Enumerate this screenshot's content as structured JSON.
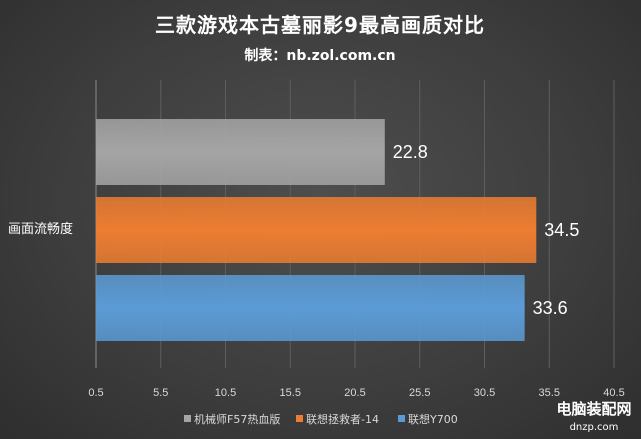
{
  "chart_data": {
    "type": "bar",
    "orientation": "horizontal",
    "title": "三款游戏本古墓丽影9最高画质对比",
    "subtitle": "制表：nb.zol.com.cn",
    "categories": [
      "画面流畅度"
    ],
    "series": [
      {
        "name": "机械师F57热血版",
        "values": [
          22.8
        ],
        "color": "#a5a5a5"
      },
      {
        "name": "联想拯救者-14",
        "values": [
          34.5
        ],
        "color": "#ed7d31"
      },
      {
        "name": "联想Y700",
        "values": [
          33.6
        ],
        "color": "#5b9bd5"
      }
    ],
    "xlim": [
      0.5,
      40.5
    ],
    "xticks": [
      "0.5",
      "5.5",
      "10.5",
      "15.5",
      "20.5",
      "25.5",
      "30.5",
      "35.5",
      "40.5"
    ],
    "grid": true,
    "legend": "bottom"
  },
  "watermark": {
    "text": "电脑装配网",
    "subtext": "dnzp.com"
  }
}
